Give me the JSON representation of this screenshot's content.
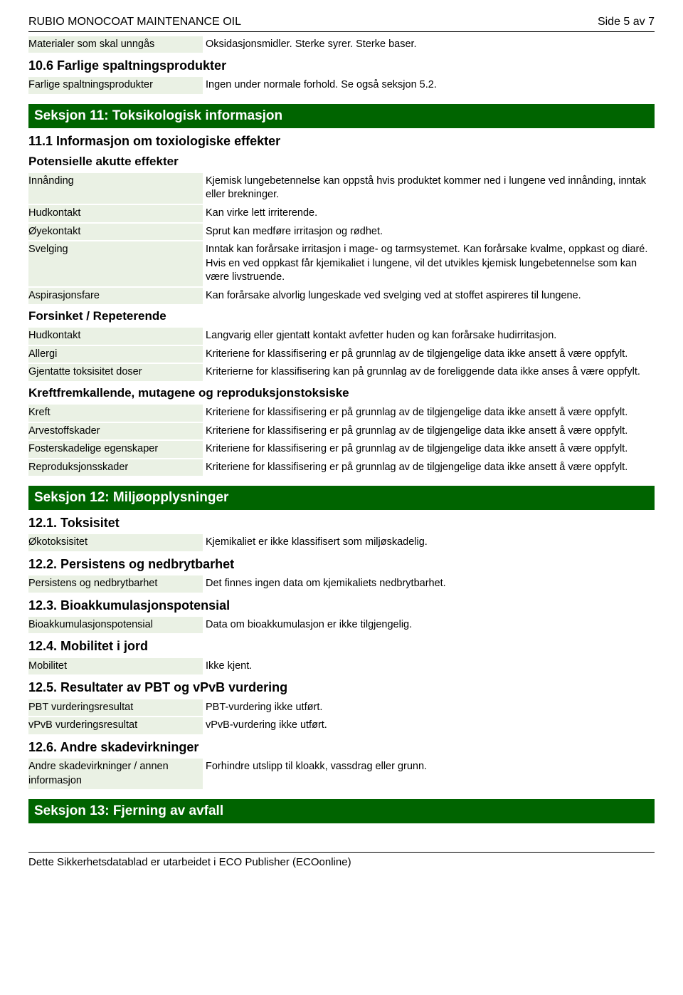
{
  "header": {
    "title": "RUBIO MONOCOAT MAINTENANCE OIL",
    "page": "Side 5 av 7"
  },
  "s10": {
    "materialsLabel": "Materialer som skal unngås",
    "materialsValue": "Oksidasjonsmidler. Sterke syrer. Sterke baser.",
    "h106": "10.6 Farlige spaltningsprodukter",
    "dangerousLabel": "Farlige spaltningsprodukter",
    "dangerousValue": "Ingen under normale forhold. Se også seksjon 5.2."
  },
  "s11": {
    "bar": "Seksjon 11: Toksikologisk informasjon",
    "h111": "11.1 Informasjon om toxiologiske effekter",
    "sub1": "Potensielle akutte effekter",
    "rows1": [
      {
        "label": "Innånding",
        "value": "Kjemisk lungebetennelse kan oppstå hvis produktet kommer ned i lungene ved innånding, inntak eller brekninger."
      },
      {
        "label": "Hudkontakt",
        "value": "Kan virke lett irriterende."
      },
      {
        "label": "Øyekontakt",
        "value": "Sprut kan medføre irritasjon og rødhet."
      },
      {
        "label": "Svelging",
        "value": "Inntak kan forårsake irritasjon i mage- og tarmsystemet. Kan forårsake kvalme, oppkast og diaré. Hvis en ved oppkast får kjemikaliet i lungene, vil det utvikles kjemisk lungebetennelse som kan være livstruende."
      },
      {
        "label": "Aspirasjonsfare",
        "value": "Kan forårsake alvorlig lungeskade ved svelging ved at stoffet aspireres til lungene."
      }
    ],
    "sub2": "Forsinket / Repeterende",
    "rows2": [
      {
        "label": "Hudkontakt",
        "value": "Langvarig eller gjentatt kontakt avfetter huden og kan forårsake hudirritasjon."
      },
      {
        "label": "Allergi",
        "value": "Kriteriene for klassifisering er på grunnlag av de tilgjengelige data ikke ansett å være oppfylt."
      },
      {
        "label": "Gjentatte toksisitet doser",
        "value": "Kriterierne for klassifisering kan på grunnlag av de foreliggende data ikke anses å være oppfylt."
      }
    ],
    "sub3": "Kreftfremkallende, mutagene og reproduksjonstoksiske",
    "rows3": [
      {
        "label": "Kreft",
        "value": "Kriteriene for klassifisering er på grunnlag av de tilgjengelige data ikke ansett å være oppfylt."
      },
      {
        "label": "Arvestoffskader",
        "value": "Kriteriene for klassifisering er på grunnlag av de tilgjengelige data ikke ansett å være oppfylt."
      },
      {
        "label": "Fosterskadelige egenskaper",
        "value": "Kriteriene for klassifisering er på grunnlag av de tilgjengelige data ikke ansett å være oppfylt."
      },
      {
        "label": "Reproduksjonsskader",
        "value": "Kriteriene for klassifisering er på grunnlag av de tilgjengelige data ikke ansett å være oppfylt."
      }
    ]
  },
  "s12": {
    "bar": "Seksjon 12: Miljøopplysninger",
    "h121": "12.1. Toksisitet",
    "r121": {
      "label": "Økotoksisitet",
      "value": "Kjemikaliet er ikke klassifisert som miljøskadelig."
    },
    "h122": "12.2. Persistens og nedbrytbarhet",
    "r122": {
      "label": "Persistens og nedbrytbarhet",
      "value": "Det finnes ingen data om kjemikaliets nedbrytbarhet."
    },
    "h123": "12.3. Bioakkumulasjonspotensial",
    "r123": {
      "label": "Bioakkumulasjonspotensial",
      "value": "Data om bioakkumulasjon er ikke tilgjengelig."
    },
    "h124": "12.4. Mobilitet i jord",
    "r124": {
      "label": "Mobilitet",
      "value": "Ikke kjent."
    },
    "h125": "12.5. Resultater av PBT og vPvB vurdering",
    "r125a": {
      "label": "PBT vurderingsresultat",
      "value": "PBT-vurdering ikke utført."
    },
    "r125b": {
      "label": "vPvB vurderingsresultat",
      "value": "vPvB-vurdering ikke utført."
    },
    "h126": "12.6. Andre skadevirkninger",
    "r126": {
      "label": "Andre skadevirkninger / annen informasjon",
      "value": "Forhindre utslipp til kloakk, vassdrag eller grunn."
    }
  },
  "s13": {
    "bar": "Seksjon 13: Fjerning av avfall"
  },
  "footer": "Dette Sikkerhetsdatablad er utarbeidet i ECO Publisher (ECOonline)",
  "colors": {
    "greenBar": "#006400",
    "labelBg": "#eaf1e4",
    "text": "#000000",
    "background": "#ffffff"
  }
}
